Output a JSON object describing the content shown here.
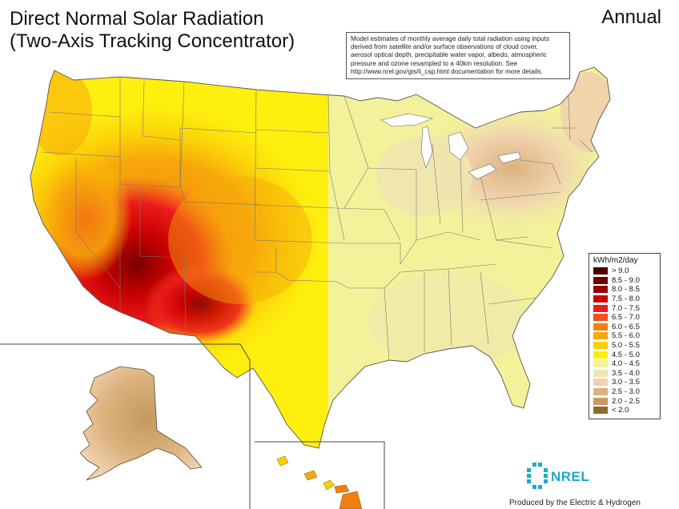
{
  "title_line1": "Direct Normal Solar Radiation",
  "title_line2": "(Two-Axis Tracking Concentrator)",
  "period": "Annual",
  "note_lines": [
    "Model estimates of monthly average daily total radiation using inputs",
    "derived from satellite and/or surface observations of cloud cover,",
    "aerosol optical depth, precipitable water vapor, albedo, atmospheric",
    "pressure and ozone resampled to a 40km resolution.  See",
    "http://www.nrel.gov/gis/il_csp.html documentation for more details."
  ],
  "legend": {
    "title": "kWh/m2/day",
    "items": [
      {
        "label": "> 9.0",
        "color": "#4a0000"
      },
      {
        "label": "8.5 - 9.0",
        "color": "#6e0000"
      },
      {
        "label": "8.0 - 8.5",
        "color": "#9a0000"
      },
      {
        "label": "7.5 - 8.0",
        "color": "#c80000"
      },
      {
        "label": "7.0 - 7.5",
        "color": "#ec1c1c"
      },
      {
        "label": "6.5 - 7.0",
        "color": "#f2501c"
      },
      {
        "label": "6.0 - 6.5",
        "color": "#f47e12"
      },
      {
        "label": "5.5 - 6.0",
        "color": "#f7a80a"
      },
      {
        "label": "5.0 - 5.5",
        "color": "#fbd000"
      },
      {
        "label": "4.5 - 5.0",
        "color": "#ffee00"
      },
      {
        "label": "4.0 - 4.5",
        "color": "#f3f29a"
      },
      {
        "label": "3.5 - 4.0",
        "color": "#eee6b0"
      },
      {
        "label": "3.0 - 3.5",
        "color": "#f0d2ac"
      },
      {
        "label": "2.5 - 3.0",
        "color": "#dcb27e"
      },
      {
        "label": "2.0 - 2.5",
        "color": "#c49a5e"
      },
      {
        "label": "< 2.0",
        "color": "#8c6a2c"
      }
    ]
  },
  "logo_text": "NREL",
  "credit": "Produced by the Electric & Hydrogen"
}
